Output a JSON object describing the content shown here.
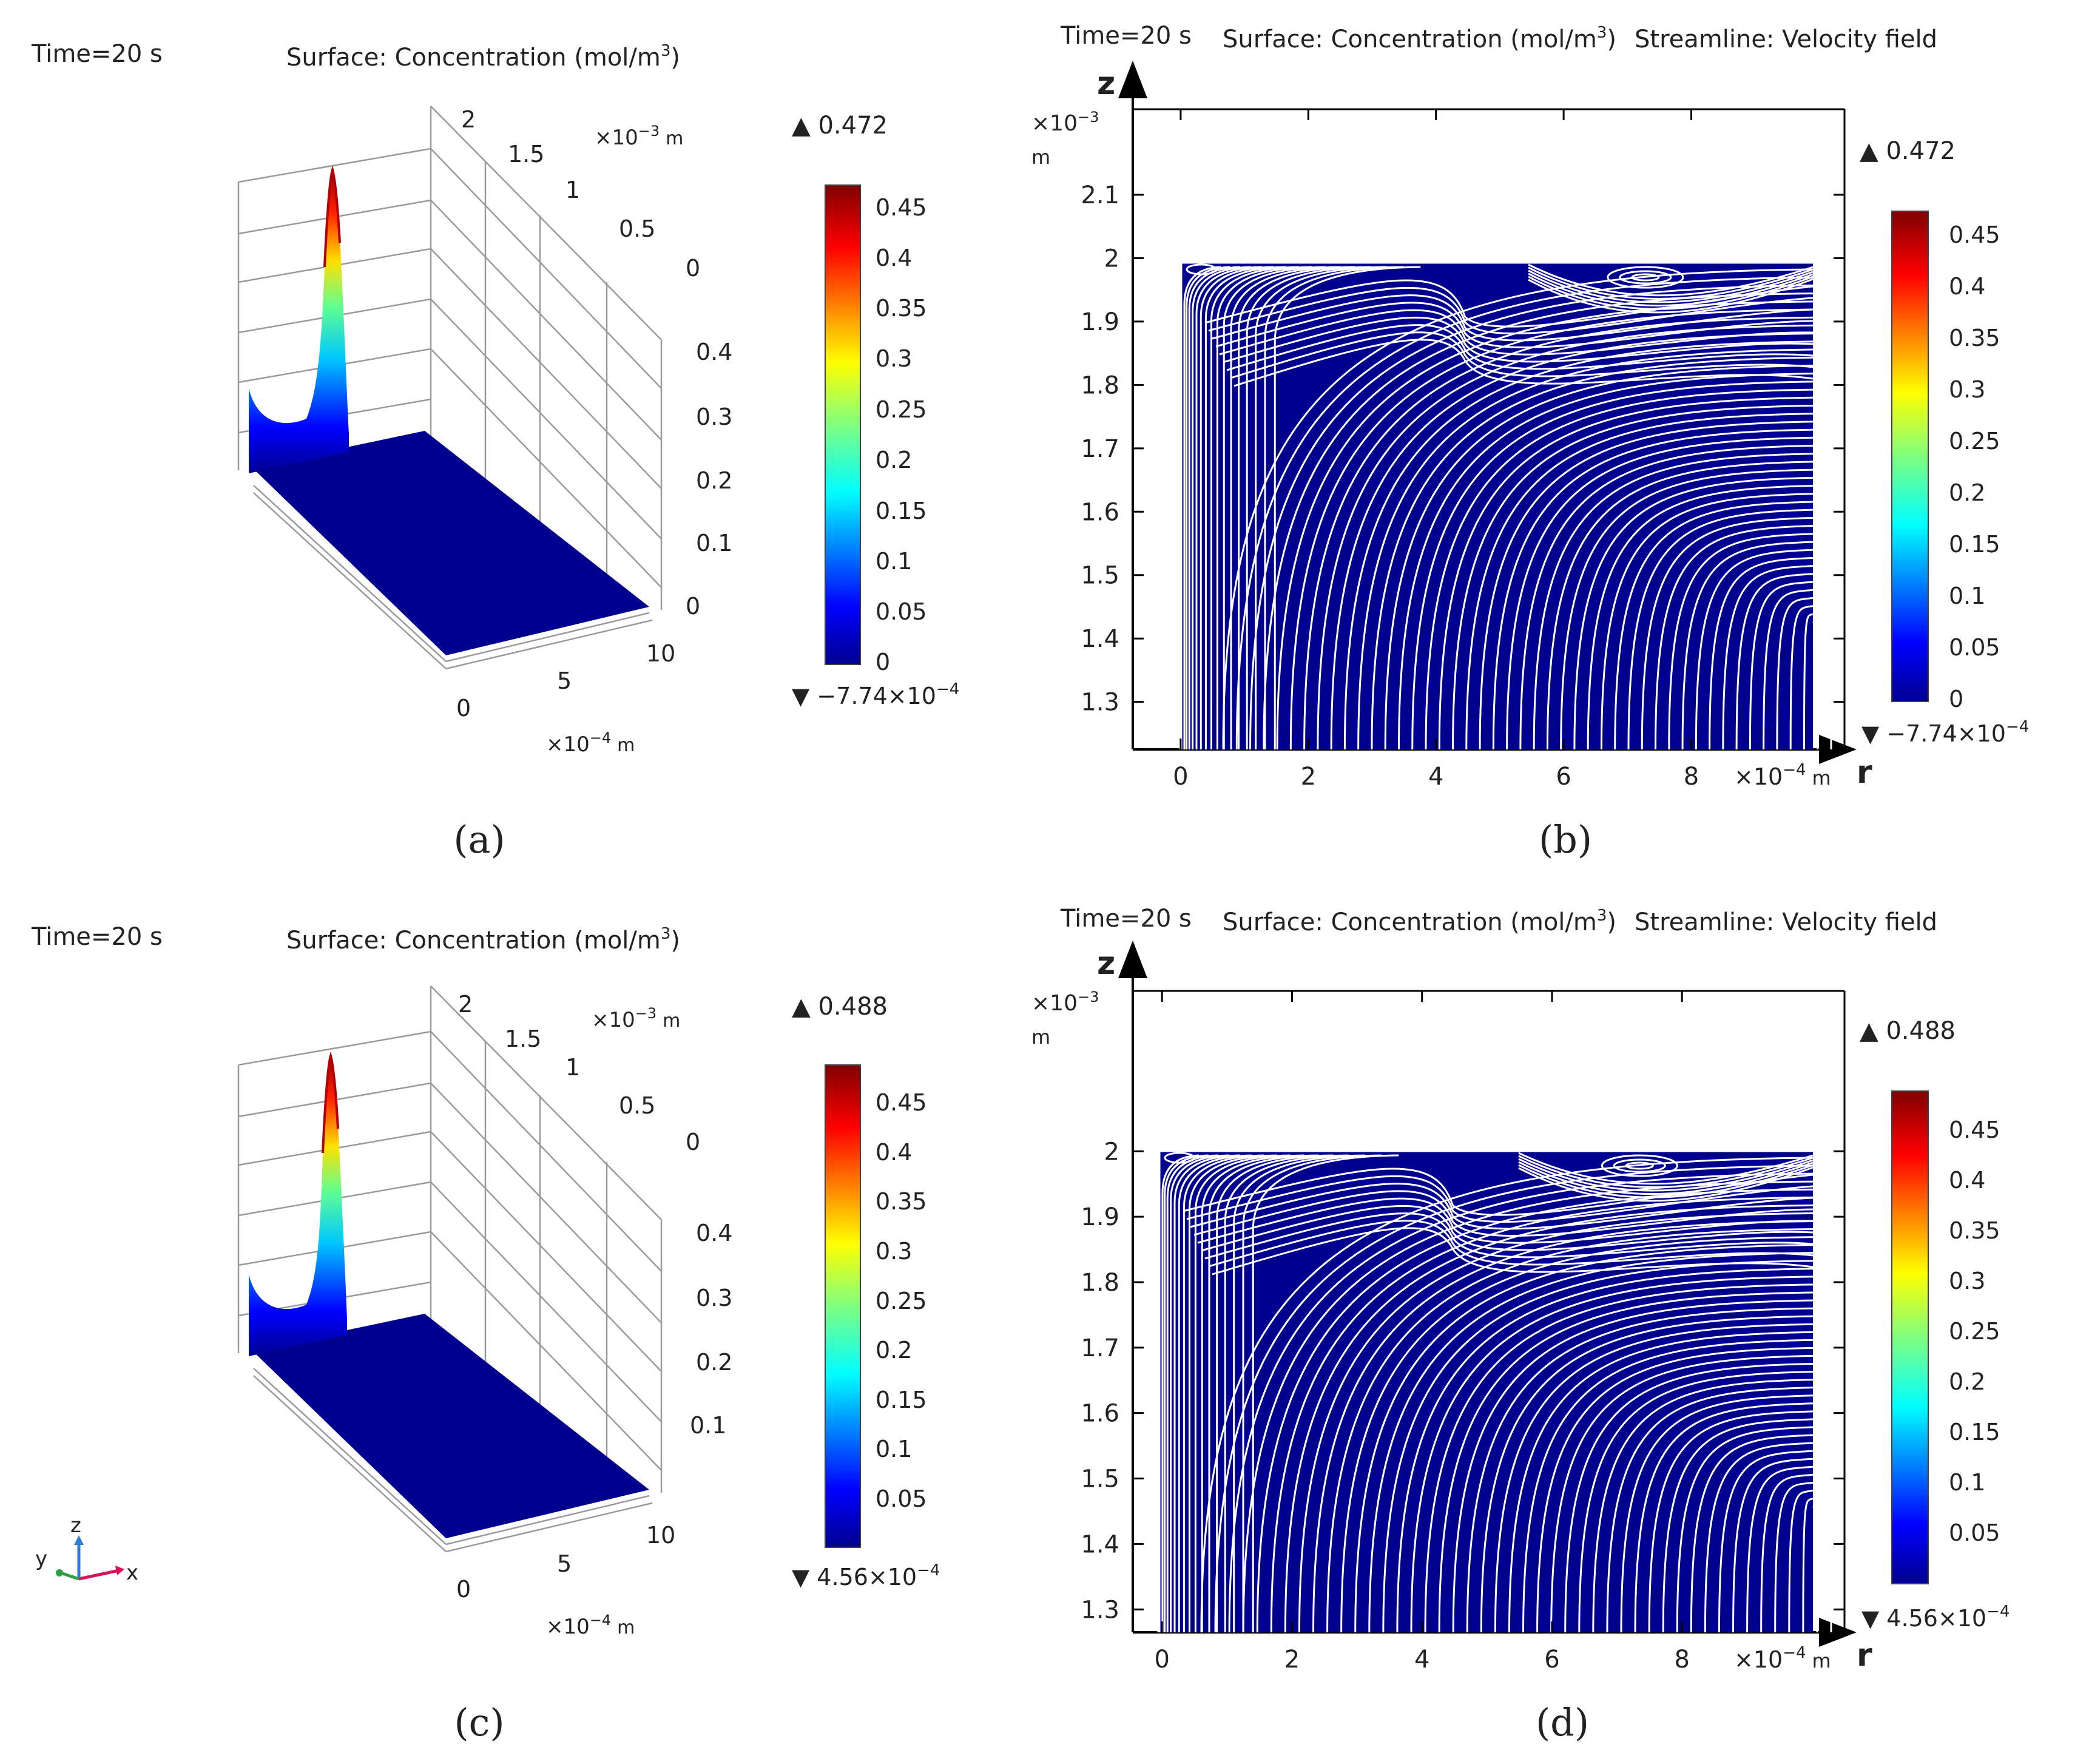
{
  "colors": {
    "surface_blue": "#00008F",
    "streamline": "#FFFFFF",
    "axis": "#000000",
    "grid": "#9a9a9a",
    "colormap": [
      "#00008F",
      "#0000FF",
      "#0080FF",
      "#00FFFF",
      "#80FF80",
      "#FFFF00",
      "#FF8000",
      "#FF0000",
      "#800000"
    ]
  },
  "chart_data": [
    {
      "id": "a",
      "caption": "(a)",
      "type": "surface-3d",
      "time_label": "Time=20 s",
      "title": "Surface: Concentration (mol/m",
      "title_sup": "3",
      "title_end": ")",
      "y_ticks": [
        "2",
        "1.5",
        "1",
        "0.5",
        "0"
      ],
      "y_unit": "×10",
      "y_unit_exp": "−3",
      "y_unit_suffix": "m",
      "z_ticks": [
        "0.4",
        "0.3",
        "0.2",
        "0.1",
        "0"
      ],
      "x_ticks": [
        "0",
        "5",
        "10"
      ],
      "x_unit": "×10",
      "x_unit_exp": "−4",
      "x_unit_suffix": "m",
      "colorbar": {
        "max_label": "▲ 0.472",
        "min_label_base": "▼ −7.74×10",
        "min_label_exp": "−4",
        "ticks": [
          "0.45",
          "0.4",
          "0.35",
          "0.3",
          "0.25",
          "0.2",
          "0.15",
          "0.1",
          "0.05",
          "0"
        ],
        "range": [
          -0.000774,
          0.472
        ]
      },
      "peak_value": 0.472
    },
    {
      "id": "b",
      "caption": "(b)",
      "type": "surface-2d-streamline",
      "time_label": "Time=20 s",
      "title": "Surface: Concentration (mol/m",
      "title_sup": "3",
      "title_end": ")",
      "title2": "Streamline: Velocity field",
      "z_label": "z",
      "r_label": "r",
      "y_unit": "×10",
      "y_unit_exp": "−3",
      "y_unit_suffix": "m",
      "y_ticks": [
        "2.1",
        "2",
        "1.9",
        "1.8",
        "1.7",
        "1.6",
        "1.5",
        "1.4",
        "1.3"
      ],
      "y_range": [
        1.225,
        2.235
      ],
      "x_ticks": [
        "0",
        "2",
        "4",
        "6",
        "8"
      ],
      "x_range": [
        -0.75,
        10.4
      ],
      "x_unit": "×10",
      "x_unit_exp": "−4",
      "x_unit_suffix": "m",
      "domain_r": [
        0,
        10
      ],
      "domain_z_top": 2.0,
      "colorbar": {
        "max_label": "▲ 0.472",
        "min_label_base": "▼ −7.74×10",
        "min_label_exp": "−4",
        "ticks": [
          "0.45",
          "0.4",
          "0.35",
          "0.3",
          "0.25",
          "0.2",
          "0.15",
          "0.1",
          "0.05",
          "0"
        ],
        "range": [
          -0.000774,
          0.472
        ]
      }
    },
    {
      "id": "c",
      "caption": "(c)",
      "type": "surface-3d",
      "time_label": "Time=20 s",
      "title": "Surface: Concentration (mol/m",
      "title_sup": "3",
      "title_end": ")",
      "y_ticks": [
        "2",
        "1.5",
        "1",
        "0.5",
        "0"
      ],
      "y_unit": "×10",
      "y_unit_exp": "−3",
      "y_unit_suffix": "m",
      "z_ticks": [
        "0.4",
        "0.3",
        "0.2",
        "0.1"
      ],
      "x_ticks": [
        "0",
        "5",
        "10"
      ],
      "x_unit": "×10",
      "x_unit_exp": "−4",
      "x_unit_suffix": "m",
      "triad": [
        "z",
        "y",
        "x"
      ],
      "colorbar": {
        "max_label": "▲ 0.488",
        "min_label_base": "▼ 4.56×10",
        "min_label_exp": "−4",
        "ticks": [
          "0.45",
          "0.4",
          "0.35",
          "0.3",
          "0.25",
          "0.2",
          "0.15",
          "0.1",
          "0.05"
        ],
        "range": [
          0.000456,
          0.488
        ]
      },
      "peak_value": 0.488
    },
    {
      "id": "d",
      "caption": "(d)",
      "type": "surface-2d-streamline",
      "time_label": "Time=20 s",
      "title": "Surface: Concentration (mol/m",
      "title_sup": "3",
      "title_end": ")",
      "title2": "Streamline: Velocity field",
      "z_label": "z",
      "r_label": "r",
      "y_unit": "×10",
      "y_unit_exp": "−3",
      "y_unit_suffix": "m",
      "y_ticks": [
        "2",
        "1.9",
        "1.8",
        "1.7",
        "1.6",
        "1.5",
        "1.4",
        "1.3"
      ],
      "y_range": [
        1.265,
        2.245
      ],
      "x_ticks": [
        "0",
        "2",
        "4",
        "6",
        "8"
      ],
      "x_range": [
        -0.45,
        10.5
      ],
      "x_unit": "×10",
      "x_unit_exp": "−4",
      "x_unit_suffix": "m",
      "domain_r": [
        0,
        10
      ],
      "domain_z_top": 2.0,
      "colorbar": {
        "max_label": "▲ 0.488",
        "min_label_base": "▼ 4.56×10",
        "min_label_exp": "−4",
        "ticks": [
          "0.45",
          "0.4",
          "0.35",
          "0.3",
          "0.25",
          "0.2",
          "0.15",
          "0.1",
          "0.05"
        ],
        "range": [
          0.000456,
          0.488
        ]
      }
    }
  ]
}
